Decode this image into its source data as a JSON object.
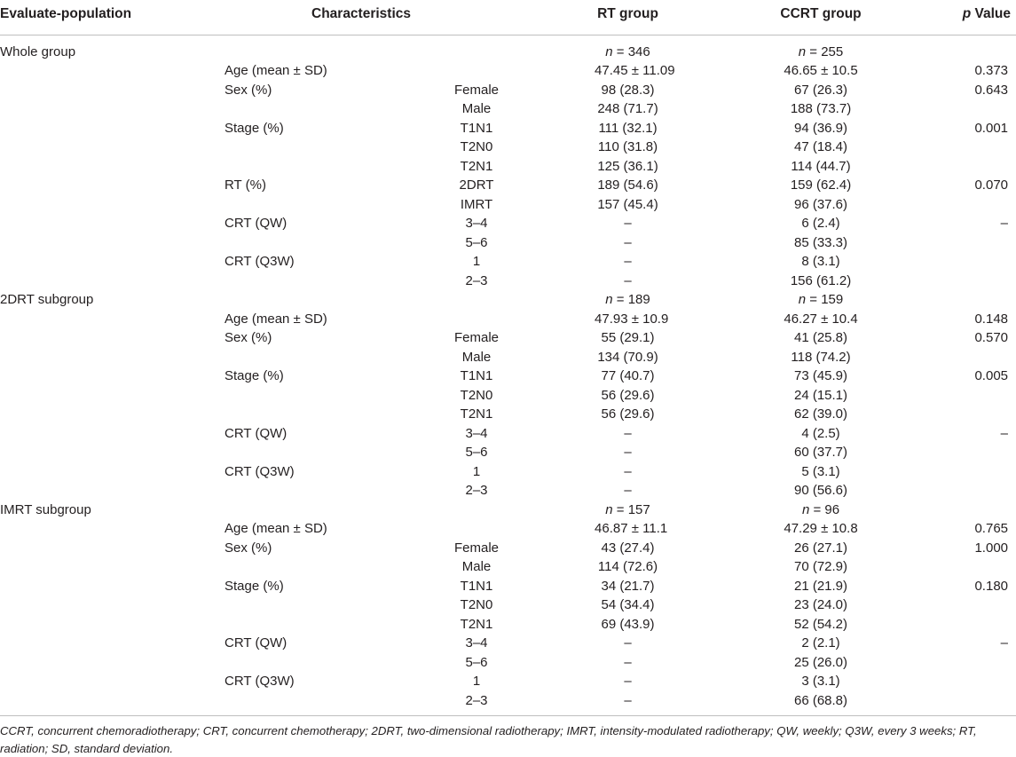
{
  "headers": {
    "population": "Evaluate-population",
    "characteristics": "Characteristics",
    "rt": "RT group",
    "ccrt": "CCRT group",
    "p_italic": "p",
    "p_rest": " Value"
  },
  "rows": [
    {
      "pop": "Whole group",
      "char": "",
      "sub": "",
      "rt": "n = 346",
      "ccrt": "n = 255",
      "p": "",
      "italic": true
    },
    {
      "pop": "",
      "char": "Age (mean ± SD)",
      "sub": "",
      "rt": "47.45 ± 11.09",
      "ccrt": "46.65 ± 10.5",
      "p": "0.373"
    },
    {
      "pop": "",
      "char": "Sex (%)",
      "sub": "Female",
      "rt": "98 (28.3)",
      "ccrt": "67 (26.3)",
      "p": "0.643"
    },
    {
      "pop": "",
      "char": "",
      "sub": "Male",
      "rt": "248 (71.7)",
      "ccrt": "188 (73.7)",
      "p": ""
    },
    {
      "pop": "",
      "char": "Stage (%)",
      "sub": "T1N1",
      "rt": "111 (32.1)",
      "ccrt": "94 (36.9)",
      "p": "0.001"
    },
    {
      "pop": "",
      "char": "",
      "sub": "T2N0",
      "rt": "110 (31.8)",
      "ccrt": "47 (18.4)",
      "p": ""
    },
    {
      "pop": "",
      "char": "",
      "sub": "T2N1",
      "rt": "125 (36.1)",
      "ccrt": "114 (44.7)",
      "p": ""
    },
    {
      "pop": "",
      "char": "RT (%)",
      "sub": "2DRT",
      "rt": "189 (54.6)",
      "ccrt": "159 (62.4)",
      "p": "0.070"
    },
    {
      "pop": "",
      "char": "",
      "sub": "IMRT",
      "rt": "157 (45.4)",
      "ccrt": "96 (37.6)",
      "p": ""
    },
    {
      "pop": "",
      "char": "CRT (QW)",
      "sub": "3–4",
      "rt": "–",
      "ccrt": "6 (2.4)",
      "p": "–"
    },
    {
      "pop": "",
      "char": "",
      "sub": "5–6",
      "rt": "–",
      "ccrt": "85 (33.3)",
      "p": ""
    },
    {
      "pop": "",
      "char": "CRT (Q3W)",
      "sub": "1",
      "rt": "–",
      "ccrt": "8 (3.1)",
      "p": ""
    },
    {
      "pop": "",
      "char": "",
      "sub": "2–3",
      "rt": "–",
      "ccrt": "156 (61.2)",
      "p": ""
    },
    {
      "pop": "2DRT subgroup",
      "char": "",
      "sub": "",
      "rt": "n = 189",
      "ccrt": "n = 159",
      "p": "",
      "italic": true
    },
    {
      "pop": "",
      "char": "Age (mean ± SD)",
      "sub": "",
      "rt": "47.93 ± 10.9",
      "ccrt": "46.27 ± 10.4",
      "p": "0.148"
    },
    {
      "pop": "",
      "char": "Sex (%)",
      "sub": "Female",
      "rt": "55 (29.1)",
      "ccrt": "41 (25.8)",
      "p": "0.570"
    },
    {
      "pop": "",
      "char": "",
      "sub": "Male",
      "rt": "134 (70.9)",
      "ccrt": "118 (74.2)",
      "p": ""
    },
    {
      "pop": "",
      "char": "Stage (%)",
      "sub": "T1N1",
      "rt": "77 (40.7)",
      "ccrt": "73 (45.9)",
      "p": "0.005"
    },
    {
      "pop": "",
      "char": "",
      "sub": "T2N0",
      "rt": "56 (29.6)",
      "ccrt": "24 (15.1)",
      "p": ""
    },
    {
      "pop": "",
      "char": "",
      "sub": "T2N1",
      "rt": "56 (29.6)",
      "ccrt": "62 (39.0)",
      "p": ""
    },
    {
      "pop": "",
      "char": "CRT (QW)",
      "sub": "3–4",
      "rt": "–",
      "ccrt": "4 (2.5)",
      "p": "–"
    },
    {
      "pop": "",
      "char": "",
      "sub": "5–6",
      "rt": "–",
      "ccrt": "60 (37.7)",
      "p": ""
    },
    {
      "pop": "",
      "char": "CRT (Q3W)",
      "sub": "1",
      "rt": "–",
      "ccrt": "5 (3.1)",
      "p": ""
    },
    {
      "pop": "",
      "char": "",
      "sub": "2–3",
      "rt": "–",
      "ccrt": "90 (56.6)",
      "p": ""
    },
    {
      "pop": "IMRT subgroup",
      "char": "",
      "sub": "",
      "rt": "n = 157",
      "ccrt": "n = 96",
      "p": "",
      "italic": true
    },
    {
      "pop": "",
      "char": "Age (mean ± SD)",
      "sub": "",
      "rt": "46.87 ± 11.1",
      "ccrt": "47.29 ± 10.8",
      "p": "0.765"
    },
    {
      "pop": "",
      "char": "Sex (%)",
      "sub": "Female",
      "rt": "43 (27.4)",
      "ccrt": "26 (27.1)",
      "p": "1.000"
    },
    {
      "pop": "",
      "char": "",
      "sub": "Male",
      "rt": "114 (72.6)",
      "ccrt": "70 (72.9)",
      "p": ""
    },
    {
      "pop": "",
      "char": "Stage (%)",
      "sub": "T1N1",
      "rt": "34 (21.7)",
      "ccrt": "21 (21.9)",
      "p": "0.180"
    },
    {
      "pop": "",
      "char": "",
      "sub": "T2N0",
      "rt": "54 (34.4)",
      "ccrt": "23 (24.0)",
      "p": ""
    },
    {
      "pop": "",
      "char": "",
      "sub": "T2N1",
      "rt": "69 (43.9)",
      "ccrt": "52 (54.2)",
      "p": ""
    },
    {
      "pop": "",
      "char": "CRT (QW)",
      "sub": "3–4",
      "rt": "–",
      "ccrt": "2 (2.1)",
      "p": "–"
    },
    {
      "pop": "",
      "char": "",
      "sub": "5–6",
      "rt": "–",
      "ccrt": "25 (26.0)",
      "p": ""
    },
    {
      "pop": "",
      "char": "CRT (Q3W)",
      "sub": "1",
      "rt": "–",
      "ccrt": "3 (3.1)",
      "p": ""
    },
    {
      "pop": "",
      "char": "",
      "sub": "2–3",
      "rt": "–",
      "ccrt": "66 (68.8)",
      "p": ""
    }
  ],
  "footnote": "CCRT, concurrent chemoradiotherapy; CRT, concurrent chemotherapy; 2DRT, two-dimensional radiotherapy; IMRT, intensity-modulated radiotherapy; QW, weekly; Q3W, every 3 weeks; RT, radiation; SD, standard deviation."
}
